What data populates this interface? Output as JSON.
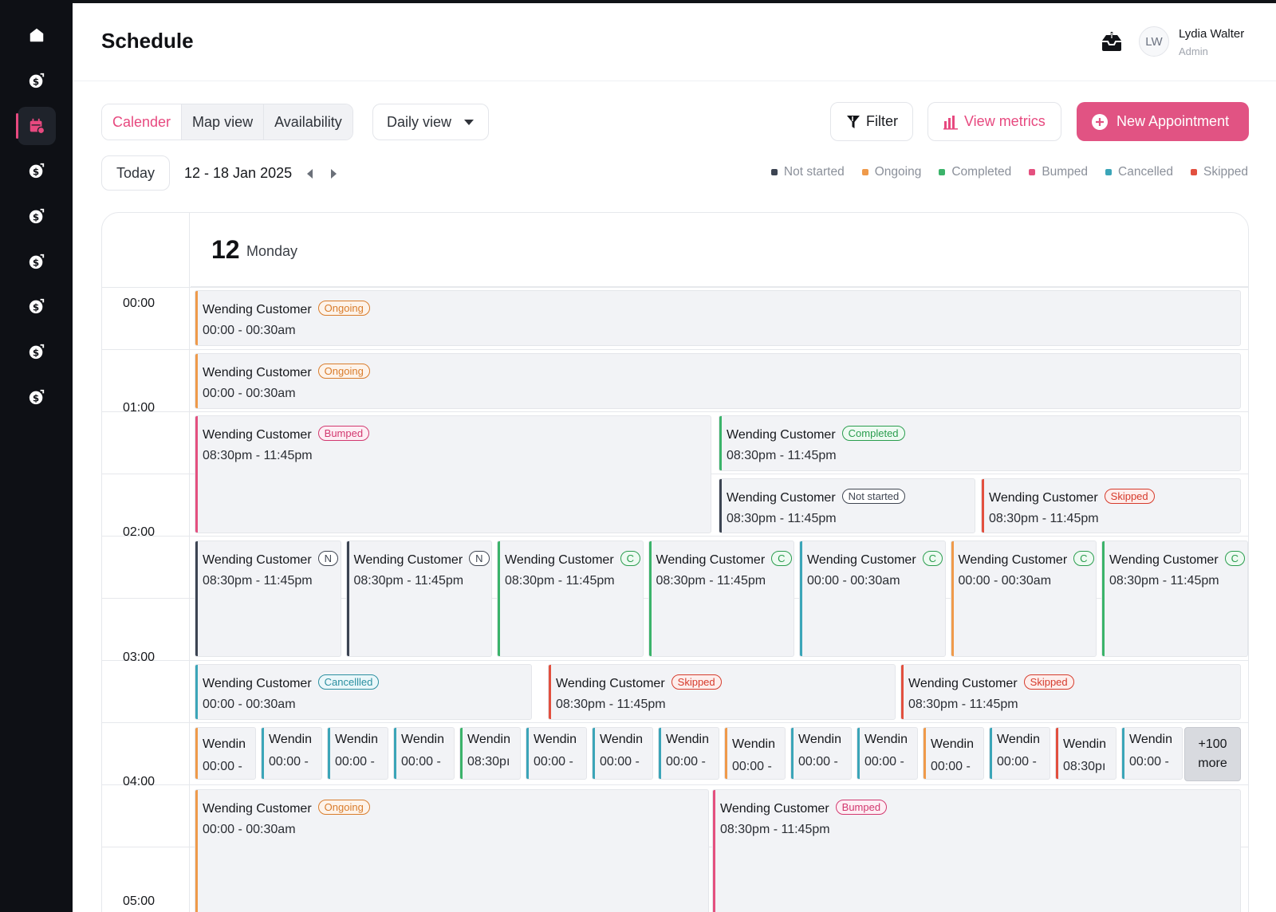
{
  "header": {
    "title": "Schedule",
    "avatar_initials": "LW",
    "user_name": "Lydia Walter",
    "user_role": "Admin"
  },
  "sidebar": {
    "items": [
      {
        "icon": "home-icon"
      },
      {
        "icon": "dollar-icon"
      },
      {
        "icon": "calendar-icon",
        "active": true
      },
      {
        "icon": "dollar-icon"
      },
      {
        "icon": "dollar-icon"
      },
      {
        "icon": "dollar-icon"
      },
      {
        "icon": "dollar-icon"
      },
      {
        "icon": "dollar-icon"
      },
      {
        "icon": "dollar-icon"
      }
    ]
  },
  "toolbar": {
    "views": [
      "Calender",
      "Map view",
      "Availability"
    ],
    "active_view": "Calender",
    "daily_view": "Daily view",
    "filter": "Filter",
    "metrics": "View metrics",
    "new_appointment": "New Appointment",
    "today": "Today",
    "range": "12 - 18 Jan 2025"
  },
  "colors": {
    "accent": "#e7497f",
    "not_started": "#3c4452",
    "ongoing": "#ef9a4a",
    "completed": "#3bb36a",
    "bumped": "#e4507f",
    "cancelled": "#3ba5b8",
    "skipped": "#e2503f"
  },
  "legend": [
    {
      "label": "Not started",
      "color": "#3c4452"
    },
    {
      "label": "Ongoing",
      "color": "#ef9a4a"
    },
    {
      "label": "Completed",
      "color": "#3bb36a"
    },
    {
      "label": "Bumped",
      "color": "#e4507f"
    },
    {
      "label": "Cancelled",
      "color": "#3ba5b8"
    },
    {
      "label": "Skipped",
      "color": "#e2503f"
    }
  ],
  "day": {
    "number": "12",
    "name": "Monday"
  },
  "time_labels": [
    "00:00",
    "01:00",
    "02:00",
    "03:00",
    "04:00",
    "05:00"
  ],
  "events": {
    "r1": {
      "title": "Wending Customer",
      "status": "Ongoing",
      "time": "00:00 - 00:30am"
    },
    "r2": {
      "title": "Wending Customer",
      "status": "Ongoing",
      "time": "00:00 - 00:30am"
    },
    "r3a": {
      "title": "Wending Customer",
      "status": "Bumped",
      "time": "08:30pm - 11:45pm"
    },
    "r3b": {
      "title": "Wending Customer",
      "status": "Completed",
      "time": "08:30pm - 11:45pm"
    },
    "r3c": {
      "title": "Wending Customer",
      "status": "Not started",
      "time": "08:30pm - 11:45pm"
    },
    "r3d": {
      "title": "Wending Customer",
      "status": "Skipped",
      "time": "08:30pm - 11:45pm"
    },
    "r4": [
      {
        "title": "Wending Customer",
        "status": "N",
        "time": "08:30pm - 11:45pm"
      },
      {
        "title": "Wending Customer",
        "status": "N",
        "time": "08:30pm - 11:45pm"
      },
      {
        "title": "Wending Customer",
        "status": "C",
        "time": "08:30pm - 11:45pm"
      },
      {
        "title": "Wending Customer",
        "status": "C",
        "time": "08:30pm - 11:45pm"
      },
      {
        "title": "Wending Customer",
        "status": "C",
        "time": "00:00 - 00:30am"
      },
      {
        "title": "Wending Customer",
        "status": "C",
        "time": "00:00 - 00:30am"
      },
      {
        "title": "Wending Customer",
        "status": "C",
        "time": "08:30pm - 11:45pm"
      }
    ],
    "r5a": {
      "title": "Wending Customer",
      "status": "Cancellled",
      "time": "00:00 - 00:30am"
    },
    "r5b": {
      "title": "Wending Customer",
      "status": "Skipped",
      "time": "08:30pm - 11:45pm"
    },
    "r5c": {
      "title": "Wending Customer",
      "status": "Skipped",
      "time": "08:30pm - 11:45pm"
    },
    "r6": [
      {
        "title": "Wendin",
        "time": "00:00 -"
      },
      {
        "title": "Wendin",
        "time": "00:00 -"
      },
      {
        "title": "Wendin",
        "time": "00:00 -"
      },
      {
        "title": "Wendin",
        "time": "00:00 -"
      },
      {
        "title": "Wendin",
        "time": "08:30pı"
      },
      {
        "title": "Wendin",
        "time": "00:00 -"
      },
      {
        "title": "Wendin",
        "time": "00:00 -"
      },
      {
        "title": "Wendin",
        "time": "00:00 -"
      },
      {
        "title": "Wendin",
        "time": "00:00 -"
      },
      {
        "title": "Wendin",
        "time": "00:00 -"
      },
      {
        "title": "Wendin",
        "time": "00:00 -"
      },
      {
        "title": "Wendin",
        "time": "00:00 -"
      },
      {
        "title": "Wendin",
        "time": "00:00 -"
      },
      {
        "title": "Wendin",
        "time": "08:30pı"
      },
      {
        "title": "Wendin",
        "time": "00:00 -"
      }
    ],
    "more": {
      "count": "+100",
      "label": "more"
    },
    "r7a": {
      "title": "Wending Customer",
      "status": "Ongoing",
      "time": "00:00 - 00:30am"
    },
    "r7b": {
      "title": "Wending Customer",
      "status": "Bumped",
      "time": "08:30pm - 11:45pm"
    }
  }
}
